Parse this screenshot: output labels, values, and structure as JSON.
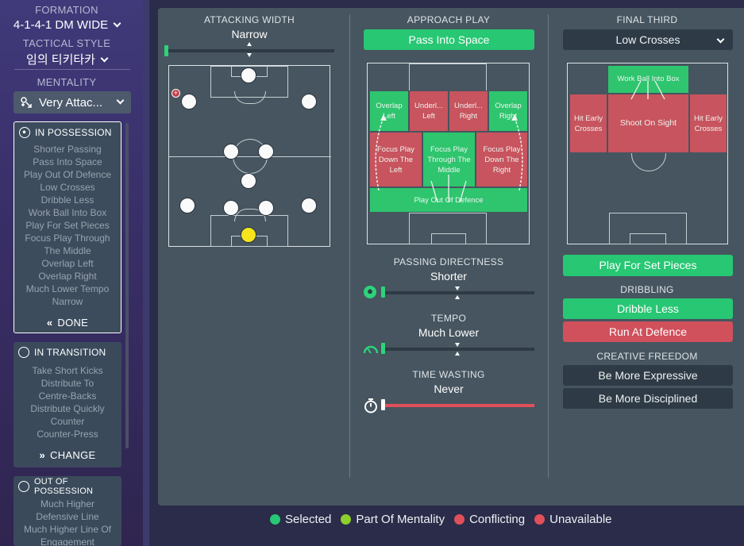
{
  "sidebar": {
    "formation_label": "FORMATION",
    "formation_value": "4-1-4-1 DM WIDE",
    "style_label": "TACTICAL STYLE",
    "style_value": "임의 티키타카",
    "mentality_label": "MENTALITY",
    "mentality_value": "Very Attac...",
    "in_possession": {
      "title": "IN POSSESSION",
      "items": [
        "Shorter Passing",
        "Pass Into Space",
        "Play Out Of Defence",
        "Low Crosses",
        "Dribble Less",
        "Work Ball Into Box",
        "Play For Set Pieces",
        "Focus Play Through",
        "The Middle",
        "Overlap Left",
        "Overlap Right",
        "Much Lower Tempo",
        "Narrow"
      ],
      "action": "DONE"
    },
    "in_transition": {
      "title": "IN TRANSITION",
      "items": [
        "Take Short Kicks",
        "Distribute To",
        "Centre-Backs",
        "Distribute Quickly",
        "Counter",
        "Counter-Press"
      ],
      "action": "CHANGE"
    },
    "out_of_possession": {
      "title": "OUT OF POSSESSION",
      "items": [
        "Much Higher",
        "Defensive Line",
        "Much Higher Line Of",
        "Engagement"
      ]
    }
  },
  "attacking_width": {
    "title": "ATTACKING WIDTH",
    "value": "Narrow",
    "level": 0.0
  },
  "approach_play": {
    "title": "APPROACH PLAY",
    "selected": "Pass Into Space",
    "zones": {
      "overlap_left": "Overlap Left",
      "underlap_left": "Underl... Left",
      "underlap_right": "Underl... Right",
      "overlap_right": "Overlap Right",
      "focus_left": "Focus Play Down The Left",
      "focus_middle": "Focus Play Through The Middle",
      "focus_right": "Focus Play Down The Right",
      "play_out": "Play Out Of Defence"
    },
    "passing_directness": {
      "title": "PASSING DIRECTNESS",
      "value": "Shorter",
      "level": 0.0
    },
    "tempo": {
      "title": "TEMPO",
      "value": "Much Lower",
      "level": 0.0
    },
    "time_wasting": {
      "title": "TIME WASTING",
      "value": "Never",
      "level": 0.0
    }
  },
  "final_third": {
    "title": "FINAL THIRD",
    "dropdown": "Low Crosses",
    "zones": {
      "work_ball": "Work Ball Into Box",
      "hit_left": "Hit Early Crosses",
      "shoot": "Shoot On Sight",
      "hit_right": "Hit Early Crosses"
    },
    "set_pieces": "Play For Set Pieces",
    "dribbling_title": "DRIBBLING",
    "dribble_less": "Dribble Less",
    "run_at_defence": "Run At Defence",
    "creative_title": "CREATIVE FREEDOM",
    "be_expressive": "Be More Expressive",
    "be_disciplined": "Be More Disciplined"
  },
  "legend": {
    "selected": "Selected",
    "mentality": "Part Of Mentality",
    "conflicting": "Conflicting",
    "unavailable": "Unavailable"
  },
  "colors": {
    "selected": "#27c773",
    "mentality": "#8dcf2c",
    "conflicting": "#e0505a",
    "unavailable": "#e0505a"
  }
}
